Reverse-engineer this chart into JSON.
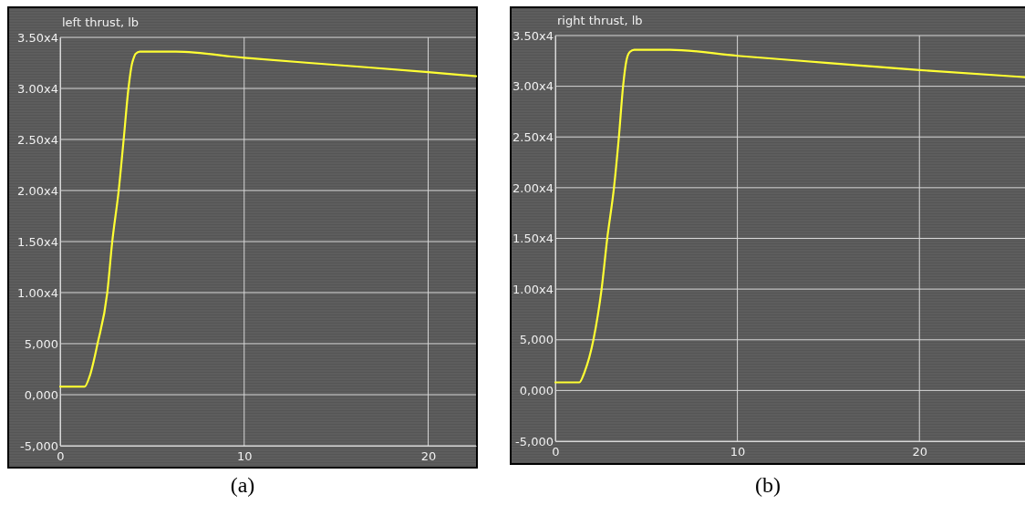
{
  "chart_data": [
    {
      "type": "line",
      "title": "left thrust, lb",
      "annotations": [
        "(a)"
      ],
      "grid": true,
      "xlim": [
        0,
        22.6
      ],
      "xticks": [
        0,
        10,
        20
      ],
      "ylim": [
        -5000,
        35000
      ],
      "yticks": [
        {
          "value": -5000,
          "label": "-5,000"
        },
        {
          "value": 0,
          "label": "0,000"
        },
        {
          "value": 5000,
          "label": "5,000"
        },
        {
          "value": 10000,
          "label": "1.00x4"
        },
        {
          "value": 15000,
          "label": "1.50x4"
        },
        {
          "value": 20000,
          "label": "2.00x4"
        },
        {
          "value": 25000,
          "label": "2.50x4"
        },
        {
          "value": 30000,
          "label": "3.00x4"
        },
        {
          "value": 35000,
          "label": "3.50x4"
        }
      ],
      "series": [
        {
          "color": "#ffff33",
          "x": [
            0,
            1.33,
            1.6,
            2.03,
            2.56,
            2.83,
            3.18,
            3.45,
            3.71,
            3.9,
            3.98,
            4.1,
            4.33,
            6.28,
            10,
            15,
            20,
            22.6
          ],
          "values": [
            800,
            800,
            1800,
            5000,
            10000,
            15000,
            20000,
            25000,
            30000,
            32400,
            32900,
            33400,
            33600,
            33600,
            33000,
            32300,
            31600,
            31200
          ]
        }
      ]
    },
    {
      "type": "line",
      "title": "right thrust, lb",
      "annotations": [
        "(b)"
      ],
      "grid": true,
      "xlim": [
        0,
        25.8
      ],
      "xticks": [
        0,
        10,
        20
      ],
      "ylim": [
        -5000,
        35000
      ],
      "yticks": [
        {
          "value": -5000,
          "label": "-5,000"
        },
        {
          "value": 0,
          "label": "0,000"
        },
        {
          "value": 5000,
          "label": "5,000"
        },
        {
          "value": 10000,
          "label": "1.00x4"
        },
        {
          "value": 15000,
          "label": "1.50x4"
        },
        {
          "value": 20000,
          "label": "2.00x4"
        },
        {
          "value": 25000,
          "label": "2.50x4"
        },
        {
          "value": 30000,
          "label": "3.00x4"
        },
        {
          "value": 35000,
          "label": "3.50x4"
        }
      ],
      "series": [
        {
          "color": "#ffff33",
          "x": [
            0,
            1.32,
            1.6,
            2.09,
            2.54,
            2.85,
            3.22,
            3.49,
            3.72,
            3.9,
            3.97,
            4.1,
            4.33,
            6.3,
            10,
            15,
            20,
            25.8
          ],
          "values": [
            800,
            800,
            1800,
            5000,
            10000,
            15000,
            20000,
            25000,
            30000,
            32500,
            33000,
            33400,
            33600,
            33600,
            33000,
            32300,
            31600,
            30900
          ]
        }
      ]
    }
  ]
}
